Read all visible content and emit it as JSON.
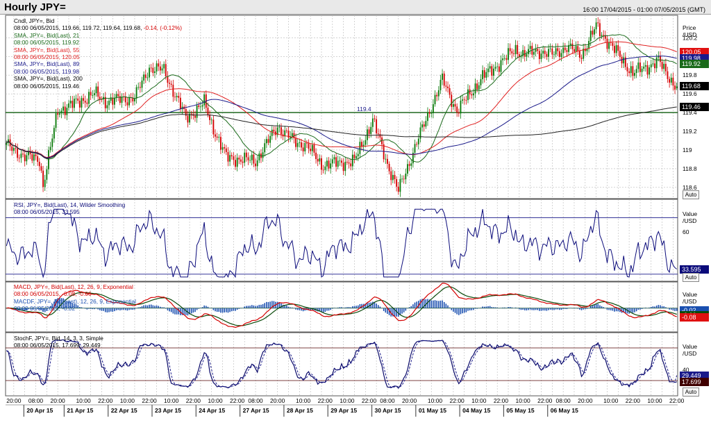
{
  "header": {
    "title": "Hourly JPY=",
    "date_range": "16:00 17/04/2015 - 01:00 07/05/2015 (GMT)"
  },
  "colors": {
    "up": "#0a7a0a",
    "down": "#d40000",
    "sma21": "#1a6a1a",
    "sma55": "#e02020",
    "sma89": "#1a1a8a",
    "sma200": "#222222",
    "rsi": "#0a0a7a",
    "macd": "#d40000",
    "signal": "#0a4a0a",
    "hist": "#1a4fb0",
    "stoch_k": "#0a0a6a",
    "stoch_d": "#1a1a8a"
  },
  "price_panel": {
    "legend": [
      {
        "text": "Cndl, JPY=, Bid",
        "color": "#000000"
      },
      {
        "text": "08:00 06/05/2015, 119.66, 119.72, 119.64, 119.68, ",
        "extra": "-0.14, (-0.12%)",
        "color": "#000000",
        "extra_color": "#d40000"
      },
      {
        "text": "SMA, JPY=, Bid(Last), 21",
        "color": "#1a6a1a"
      },
      {
        "text": "08:00 06/05/2015, 119.92",
        "color": "#1a6a1a"
      },
      {
        "text": "SMA, JPY=, Bid(Last), 55",
        "color": "#e02020"
      },
      {
        "text": "08:00 06/05/2015, 120.05",
        "color": "#e02020"
      },
      {
        "text": "SMA, JPY=, Bid(Last), 89",
        "color": "#1a1a8a"
      },
      {
        "text": "08:00 06/05/2015, 119.98",
        "color": "#1a1a8a"
      },
      {
        "text": "SMA, JPY=, Bid(Last), 200",
        "color": "#000000"
      },
      {
        "text": "08:00 06/05/2015, 119.46",
        "color": "#000000"
      }
    ],
    "axis_header": [
      "Price",
      "/USD"
    ],
    "ticks": [
      "120.2",
      "120",
      "119.8",
      "119.6",
      "119.4",
      "119.2",
      "119",
      "118.8",
      "118.6"
    ],
    "tick_values": [
      120.2,
      120.0,
      119.8,
      119.6,
      119.4,
      119.2,
      119.0,
      118.8,
      118.6
    ],
    "ylim": [
      118.48,
      120.44
    ],
    "horizontal_line": {
      "value": 119.4,
      "label": "119.4"
    },
    "price_boxes": [
      {
        "value": 120.05,
        "label": "120.05",
        "bg": "#e01010",
        "fg": "#ffffff"
      },
      {
        "value": 119.98,
        "label": "119.98",
        "bg": "#1a1a8a",
        "fg": "#ffffff"
      },
      {
        "value": 119.92,
        "label": "119.92",
        "bg": "#1a6a1a",
        "fg": "#ffffff"
      },
      {
        "value": 119.68,
        "label": "119.68",
        "bg": "#000000",
        "fg": "#ffffff"
      },
      {
        "value": 119.46,
        "label": "119.46",
        "bg": "#000000",
        "fg": "#ffffff"
      }
    ],
    "auto_label": "Auto"
  },
  "rsi_panel": {
    "legend": [
      {
        "text": "RSI, JPY=, Bid(Last), 14, Wilder Smoothing",
        "color": "#0a0a7a"
      },
      {
        "text": "08:00 06/05/2015, 33.595",
        "color": "#0a0a7a"
      }
    ],
    "axis_header": [
      "Value",
      "/USD"
    ],
    "ticks": [
      "60"
    ],
    "tick_values": [
      60
    ],
    "ylim": [
      25,
      83
    ],
    "levels": [
      70,
      30
    ],
    "value_box": {
      "value": 33.595,
      "label": "33.595",
      "bg": "#0a0a7a",
      "fg": "#ffffff"
    },
    "auto_label": "Auto"
  },
  "macd_panel": {
    "legend": [
      {
        "text": "MACD, JPY=, Bid(Last), 12, 26, 9, Exponential",
        "color": "#d40000"
      },
      {
        "text": "08:00 06/05/2015, -0.08, -0.06",
        "color": "#d40000"
      },
      {
        "text": "MACDF, JPY=, Bid(Last), 12, 26, 9, Exponential",
        "color": "#1a4fb0"
      },
      {
        "text": "08:00 06/05/2015, -0.02",
        "color": "#1a4fb0"
      }
    ],
    "axis_header": [
      "Value",
      "/USD"
    ],
    "ylim": [
      -0.2,
      0.22
    ],
    "value_boxes": [
      {
        "value": -0.02,
        "label": "-0.02",
        "bg": "#1a4fb0",
        "fg": "#ffffff"
      },
      {
        "value": -0.06,
        "label": "-0.06",
        "bg": "#0a4a0a",
        "fg": "#ffffff"
      },
      {
        "value": -0.08,
        "label": "-0.08",
        "bg": "#e01010",
        "fg": "#ffffff"
      }
    ]
  },
  "stoch_panel": {
    "legend": [
      {
        "text": "StochF, JPY=, Bid, 14, 3, 3, Simple",
        "color": "#000000"
      },
      {
        "text": "08:00 06/05/2015, 17.699, 29.449",
        "color": "#000000"
      }
    ],
    "axis_header": [
      "Value",
      "/USD"
    ],
    "ticks": [
      "40"
    ],
    "tick_values": [
      40
    ],
    "ylim": [
      -8,
      108
    ],
    "levels": [
      80,
      20
    ],
    "value_boxes": [
      {
        "value": 29.449,
        "label": "29.449",
        "bg": "#1a1a8a",
        "fg": "#ffffff"
      },
      {
        "value": 17.699,
        "label": "17.699",
        "bg": "#400000",
        "fg": "#ffffff"
      }
    ],
    "auto_label": "Auto"
  },
  "time_axis": {
    "hour_labels": [
      "20:00",
      "08:00",
      "20:00",
      "10:00",
      "22:00",
      "10:00",
      "22:00",
      "10:00",
      "22:00",
      "10:00",
      "22:00",
      "08:00",
      "20:00",
      "10:00",
      "22:00",
      "10:00",
      "22:00",
      "08:00",
      "20:00",
      "10:00",
      "22:00",
      "10:00",
      "22:00",
      "10:00",
      "22:00",
      "08:00",
      "20:00",
      "10:00",
      "22:00",
      "10:00",
      "22:00"
    ],
    "hour_label_bars": [
      4,
      16,
      28,
      42,
      54,
      66,
      78,
      90,
      102,
      114,
      126,
      136,
      148,
      162,
      174,
      186,
      198,
      208,
      220,
      234,
      246,
      258,
      270,
      282,
      294,
      304,
      316,
      330,
      342,
      354,
      366
    ],
    "day_labels": [
      "20 Apr 15",
      "21 Apr 15",
      "22 Apr 15",
      "23 Apr 15",
      "24 Apr 15",
      "27 Apr 15",
      "28 Apr 15",
      "29 Apr 15",
      "30 Apr 15",
      "01 May 15",
      "04 May 15",
      "05 May 15",
      "06 May 15"
    ],
    "day_start_bars": [
      10,
      32,
      56,
      80,
      104,
      128,
      152,
      176,
      200,
      224,
      248,
      272,
      296
    ]
  },
  "chart_data": {
    "type": "candlestick",
    "title": "Hourly JPY=",
    "interval": "hourly",
    "symbol": "JPY=",
    "period": "16:00 17/04/2015 - 01:00 07/05/2015 (GMT)",
    "bar_count": 367,
    "close_anchors": {
      "bars": [
        0,
        10,
        18,
        20,
        28,
        40,
        48,
        54,
        70,
        78,
        86,
        98,
        108,
        112,
        120,
        136,
        148,
        158,
        164,
        172,
        190,
        200,
        208,
        214,
        224,
        238,
        246,
        260,
        272,
        278,
        282,
        290,
        298,
        306,
        314,
        322,
        342,
        356,
        366
      ],
      "values": [
        119.05,
        118.93,
        118.9,
        118.62,
        119.42,
        119.52,
        119.6,
        119.52,
        119.56,
        119.88,
        119.85,
        119.34,
        119.5,
        119.28,
        118.92,
        118.88,
        119.25,
        119.08,
        119.05,
        118.84,
        118.88,
        119.32,
        118.85,
        118.56,
        119.08,
        119.75,
        119.42,
        119.78,
        119.97,
        120.08,
        120.02,
        120.06,
        120.02,
        120.1,
        120.02,
        120.32,
        119.82,
        119.95,
        119.66
      ]
    },
    "last_candle": {
      "time": "08:00 06/05/2015",
      "open": 119.66,
      "high": 119.72,
      "low": 119.64,
      "close": 119.68,
      "change": -0.14,
      "change_pct": -0.12
    },
    "sma": [
      {
        "period": 21,
        "last": 119.92
      },
      {
        "period": 55,
        "last": 120.05
      },
      {
        "period": 89,
        "last": 119.98
      },
      {
        "period": 200,
        "last": 119.46
      }
    ],
    "rsi": {
      "period": 14,
      "last": 33.595,
      "levels": [
        70,
        30
      ]
    },
    "macd": {
      "fast": 12,
      "slow": 26,
      "signal": 9,
      "last_macd": -0.08,
      "last_signal": -0.06,
      "last_hist": -0.02
    },
    "stoch": {
      "k": 14,
      "smooth": 3,
      "d": 3,
      "last_k": 17.699,
      "last_d": 29.449,
      "levels": [
        80,
        20
      ]
    }
  }
}
